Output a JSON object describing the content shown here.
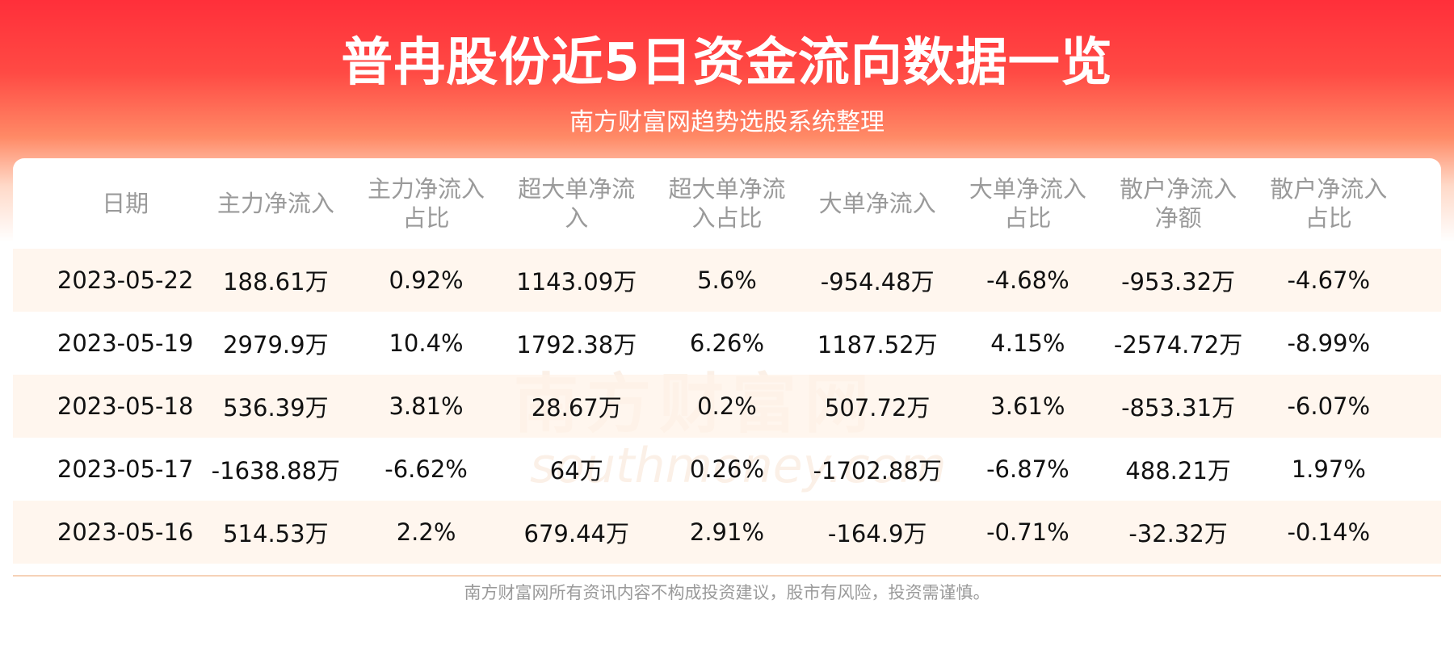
{
  "header": {
    "title": "普冉股份近5日资金流向数据一览",
    "subtitle": "南方财富网趋势选股系统整理"
  },
  "watermark": {
    "cn": "南方财富网",
    "en": "southmoney.com"
  },
  "table": {
    "columns": [
      "日期",
      "主力净流入",
      "主力净流入占比",
      "超大单净流入",
      "超大单净流入占比",
      "大单净流入",
      "大单净流入占比",
      "散户净流入净额",
      "散户净流入占比"
    ],
    "rows": [
      [
        "2023-05-22",
        "188.61万",
        "0.92%",
        "1143.09万",
        "5.6%",
        "-954.48万",
        "-4.68%",
        "-953.32万",
        "-4.67%"
      ],
      [
        "2023-05-19",
        "2979.9万",
        "10.4%",
        "1792.38万",
        "6.26%",
        "1187.52万",
        "4.15%",
        "-2574.72万",
        "-8.99%"
      ],
      [
        "2023-05-18",
        "536.39万",
        "3.81%",
        "28.67万",
        "0.2%",
        "507.72万",
        "3.61%",
        "-853.31万",
        "-6.07%"
      ],
      [
        "2023-05-17",
        "-1638.88万",
        "-6.62%",
        "64万",
        "0.26%",
        "-1702.88万",
        "-6.87%",
        "488.21万",
        "1.97%"
      ],
      [
        "2023-05-16",
        "514.53万",
        "2.2%",
        "679.44万",
        "2.91%",
        "-164.9万",
        "-0.71%",
        "-32.32万",
        "-0.14%"
      ]
    ]
  },
  "footer": "南方财富网所有资讯内容不构成投资建议，股市有风险，投资需谨慎。"
}
